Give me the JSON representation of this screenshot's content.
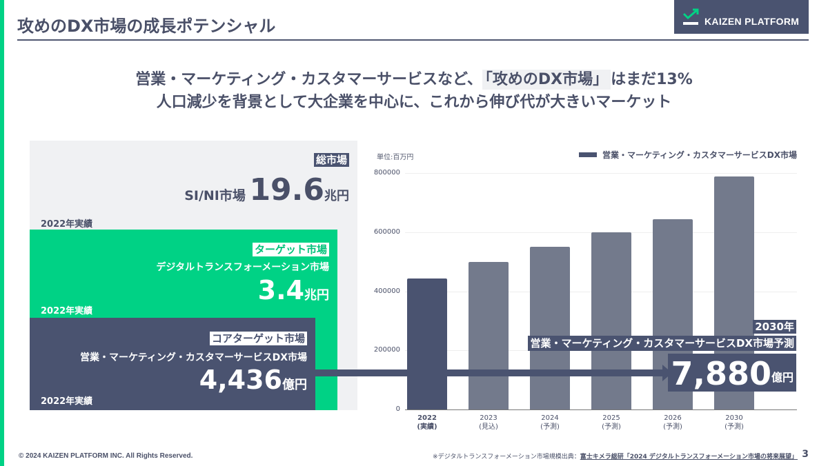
{
  "header": {
    "title": "攻めのDX市場の成長ポテンシャル",
    "logo_text": "KAIZEN PLATFORM"
  },
  "headline": {
    "line1_prefix": "営業・マーケティング・カスタマーサービスなど、",
    "line1_highlight": "「攻めのDX市場」",
    "line1_suffix": "はまだ13%",
    "line2": "人口減少を背景として大企業を中心に、これから伸び代が大きいマーケット"
  },
  "markets": {
    "total": {
      "tag": "総市場",
      "label": "SI/NI市場",
      "value": "19.6",
      "unit": "兆円",
      "year": "2022年実績"
    },
    "target": {
      "tag": "ターゲット市場",
      "name": "デジタルトランスフォーメーション市場",
      "value": "3.4",
      "unit": "兆円",
      "year": "2022年実績"
    },
    "core": {
      "tag": "コアターゲット市場",
      "name": "営業・マーケティング・カスタマーサービスDX市場",
      "value": "4,436",
      "unit": "億円",
      "year": "2022年実績"
    }
  },
  "forecast": {
    "year": "2030年",
    "label": "営業・マーケティング・カスタマーサービスDX市場予測",
    "value": "7,880",
    "unit": "億円"
  },
  "chart_data": {
    "type": "bar",
    "title": "",
    "unit_label": "単位:百万円",
    "legend": [
      "営業・マーケティング・カスタマーサービスDX市場"
    ],
    "legend_position": "top-right",
    "categories": [
      "2022\n(実績)",
      "2023\n(見込)",
      "2024\n(予測)",
      "2025\n(予測)",
      "2026\n(予測)",
      "2030\n(予測)"
    ],
    "category_years": [
      "2022",
      "2023",
      "2024",
      "2025",
      "2026",
      "2030"
    ],
    "category_notes": [
      "(実績)",
      "(見込)",
      "(予測)",
      "(予測)",
      "(予測)",
      "(予測)"
    ],
    "series": [
      {
        "name": "営業・マーケティング・カスタマーサービスDX市場",
        "values": [
          443600,
          499000,
          550000,
          599000,
          644000,
          788000
        ]
      }
    ],
    "y_ticks": [
      "800000",
      "600000",
      "400000",
      "200000",
      "0"
    ],
    "ylim": [
      0,
      800000
    ],
    "grid": true,
    "colors": {
      "highlight": "#4a5370",
      "default": "#737a8c"
    }
  },
  "footer": {
    "copyright": "© 2024 KAIZEN PLATFORM INC. All Rights Reserved.",
    "source_prefix": "※デジタルトランスフォーメーション市場規模出典：",
    "source_link": "富士キメラ総研「2024 デジタルトランスフォーメーション市場の将来展望」",
    "page_number": "3"
  },
  "colors": {
    "accent": "#00d285",
    "navy": "#4a5370",
    "panel": "#f0f1f3"
  }
}
